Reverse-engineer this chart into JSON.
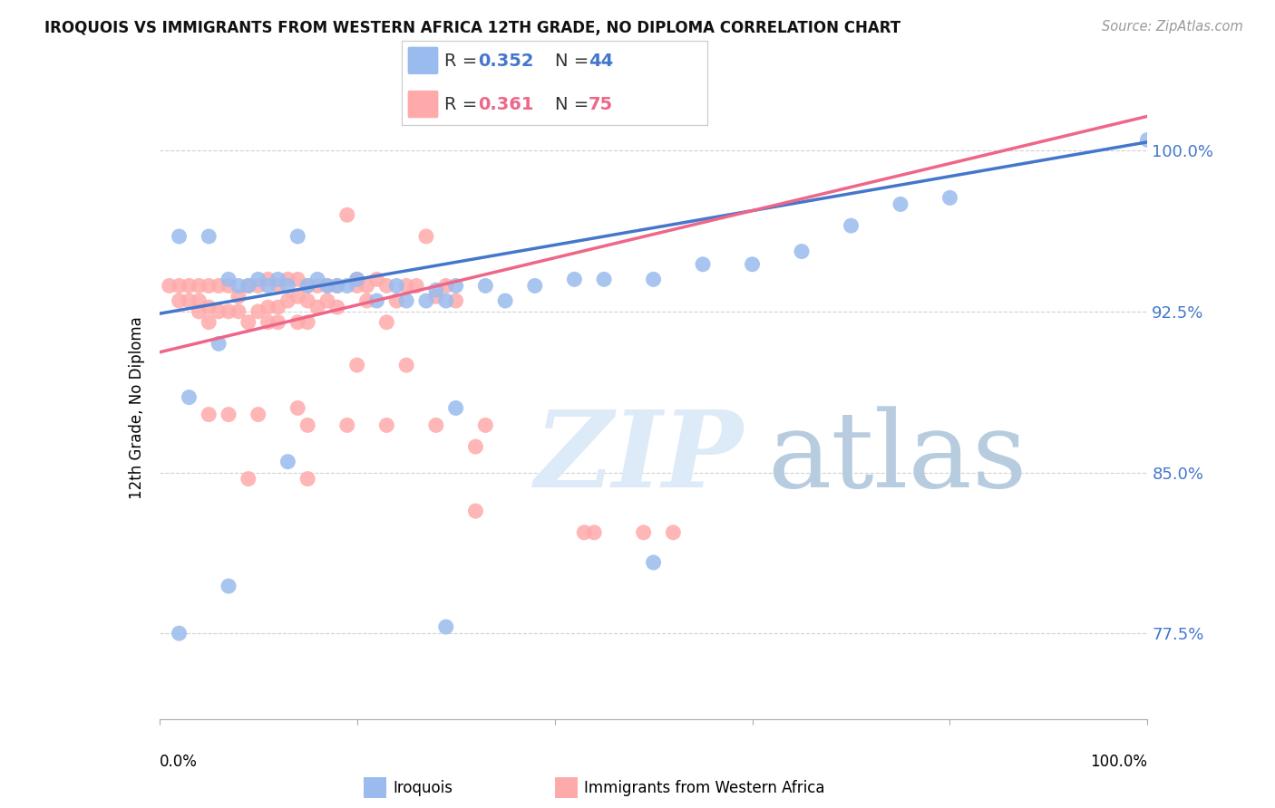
{
  "title": "IROQUOIS VS IMMIGRANTS FROM WESTERN AFRICA 12TH GRADE, NO DIPLOMA CORRELATION CHART",
  "source": "Source: ZipAtlas.com",
  "ylabel": "12th Grade, No Diploma",
  "ytick_vals": [
    0.775,
    0.85,
    0.925,
    1.0
  ],
  "ytick_labels": [
    "77.5%",
    "85.0%",
    "92.5%",
    "100.0%"
  ],
  "xlim": [
    0.0,
    1.0
  ],
  "ylim": [
    0.735,
    1.025
  ],
  "blue_R": "0.352",
  "blue_N": "44",
  "pink_R": "0.361",
  "pink_N": "75",
  "blue_dot_color": "#99BBEE",
  "pink_dot_color": "#FFAAAA",
  "blue_line_color": "#4477CC",
  "pink_line_color": "#EE6688",
  "watermark_color": "#DDEAF8",
  "legend_label_blue": "Iroquois",
  "legend_label_pink": "Immigrants from Western Africa",
  "blue_x": [
    0.02,
    0.05,
    0.07,
    0.08,
    0.09,
    0.1,
    0.11,
    0.12,
    0.13,
    0.14,
    0.15,
    0.16,
    0.17,
    0.18,
    0.19,
    0.2,
    0.22,
    0.24,
    0.25,
    0.27,
    0.28,
    0.29,
    0.3,
    0.33,
    0.35,
    0.38,
    0.42,
    0.45,
    0.5,
    0.55,
    0.6,
    0.65,
    0.7,
    0.75,
    0.8,
    1.0,
    0.03,
    0.06,
    0.13,
    0.3,
    0.02,
    0.07,
    0.29,
    0.5
  ],
  "blue_y": [
    0.96,
    0.96,
    0.94,
    0.937,
    0.937,
    0.94,
    0.937,
    0.94,
    0.937,
    0.96,
    0.937,
    0.94,
    0.937,
    0.937,
    0.937,
    0.94,
    0.93,
    0.937,
    0.93,
    0.93,
    0.935,
    0.93,
    0.937,
    0.937,
    0.93,
    0.937,
    0.94,
    0.94,
    0.94,
    0.947,
    0.947,
    0.953,
    0.965,
    0.975,
    0.978,
    1.005,
    0.885,
    0.91,
    0.855,
    0.88,
    0.775,
    0.797,
    0.778,
    0.808
  ],
  "pink_x": [
    0.01,
    0.02,
    0.02,
    0.03,
    0.03,
    0.04,
    0.04,
    0.04,
    0.05,
    0.05,
    0.05,
    0.06,
    0.06,
    0.07,
    0.07,
    0.08,
    0.08,
    0.09,
    0.09,
    0.1,
    0.1,
    0.11,
    0.11,
    0.11,
    0.12,
    0.12,
    0.12,
    0.13,
    0.13,
    0.14,
    0.14,
    0.14,
    0.15,
    0.15,
    0.15,
    0.16,
    0.16,
    0.17,
    0.17,
    0.18,
    0.18,
    0.19,
    0.2,
    0.2,
    0.21,
    0.21,
    0.22,
    0.23,
    0.23,
    0.24,
    0.25,
    0.26,
    0.27,
    0.28,
    0.29,
    0.3,
    0.14,
    0.2,
    0.25,
    0.05,
    0.07,
    0.1,
    0.15,
    0.19,
    0.23,
    0.28,
    0.32,
    0.09,
    0.15,
    0.33,
    0.32,
    0.43,
    0.44,
    0.49,
    0.52
  ],
  "pink_y": [
    0.937,
    0.937,
    0.93,
    0.937,
    0.93,
    0.937,
    0.93,
    0.925,
    0.937,
    0.927,
    0.92,
    0.937,
    0.925,
    0.937,
    0.925,
    0.932,
    0.925,
    0.937,
    0.92,
    0.937,
    0.925,
    0.94,
    0.927,
    0.92,
    0.937,
    0.927,
    0.92,
    0.94,
    0.93,
    0.94,
    0.932,
    0.92,
    0.937,
    0.93,
    0.92,
    0.937,
    0.927,
    0.937,
    0.93,
    0.937,
    0.927,
    0.97,
    0.94,
    0.937,
    0.937,
    0.93,
    0.94,
    0.937,
    0.92,
    0.93,
    0.937,
    0.937,
    0.96,
    0.932,
    0.937,
    0.93,
    0.88,
    0.9,
    0.9,
    0.877,
    0.877,
    0.877,
    0.872,
    0.872,
    0.872,
    0.872,
    0.862,
    0.847,
    0.847,
    0.872,
    0.832,
    0.822,
    0.822,
    0.822,
    0.822
  ]
}
